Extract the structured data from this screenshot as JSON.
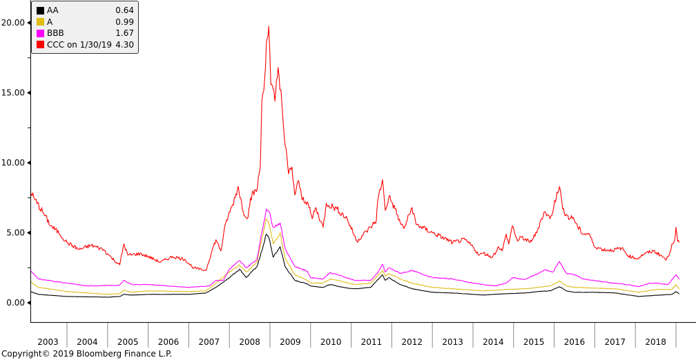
{
  "chart_data": {
    "type": "line",
    "title": "",
    "xlabel": "",
    "ylabel": "",
    "xlim": [
      2003.0,
      2019.35
    ],
    "ylim": [
      -0.5,
      21.5
    ],
    "yticks": [
      {
        "value": 0,
        "label": "0.00"
      },
      {
        "value": 5,
        "label": "5.00"
      },
      {
        "value": 10,
        "label": "10.00"
      },
      {
        "value": 15,
        "label": "15.00"
      },
      {
        "value": 20,
        "label": "20.00"
      }
    ],
    "years": [
      "2003",
      "2004",
      "2005",
      "2006",
      "2007",
      "2008",
      "2009",
      "2010",
      "2011",
      "2012",
      "2013",
      "2014",
      "2015",
      "2016",
      "2017",
      "2018"
    ],
    "grid": false,
    "legend_placement": "top-left",
    "series": [
      {
        "name": "AA",
        "color": "#000000",
        "last": "0.64",
        "x": [
          2003.1,
          2003.3,
          2004.0,
          2005.0,
          2005.3,
          2005.4,
          2005.6,
          2006.0,
          2007.0,
          2007.42,
          2007.67,
          2008.0,
          2008.25,
          2008.42,
          2008.68,
          2008.76,
          2008.91,
          2008.98,
          2009.08,
          2009.25,
          2009.37,
          2009.61,
          2009.92,
          2010.0,
          2010.3,
          2010.48,
          2010.8,
          2011.08,
          2011.48,
          2011.77,
          2011.84,
          2011.93,
          2012.21,
          2012.5,
          2013.0,
          2013.5,
          2014.0,
          2014.26,
          2014.8,
          2015.3,
          2015.6,
          2015.9,
          2016.13,
          2016.3,
          2016.5,
          2017.0,
          2017.5,
          2018.08,
          2018.6,
          2018.9,
          2019.0,
          2019.08
        ],
        "y": [
          0.8,
          0.6,
          0.45,
          0.4,
          0.45,
          0.6,
          0.55,
          0.6,
          0.6,
          0.7,
          1.1,
          1.8,
          2.4,
          1.8,
          2.6,
          3.3,
          4.9,
          4.6,
          3.25,
          4.0,
          2.6,
          1.6,
          1.35,
          1.2,
          1.1,
          1.3,
          1.1,
          1.0,
          1.1,
          2.0,
          1.6,
          1.8,
          1.3,
          1.0,
          0.75,
          0.7,
          0.6,
          0.55,
          0.65,
          0.7,
          0.8,
          0.85,
          1.15,
          0.85,
          0.75,
          0.75,
          0.7,
          0.45,
          0.55,
          0.6,
          0.8,
          0.64
        ]
      },
      {
        "name": "A",
        "color": "#e0bc14",
        "last": "0.99",
        "x": [
          2003.1,
          2003.3,
          2004.0,
          2005.0,
          2005.3,
          2005.4,
          2005.6,
          2006.0,
          2007.0,
          2007.42,
          2007.67,
          2008.0,
          2008.25,
          2008.42,
          2008.68,
          2008.76,
          2008.91,
          2008.98,
          2009.08,
          2009.25,
          2009.37,
          2009.61,
          2009.92,
          2010.0,
          2010.3,
          2010.48,
          2010.8,
          2011.08,
          2011.48,
          2011.77,
          2011.84,
          2011.93,
          2012.21,
          2012.5,
          2013.0,
          2013.5,
          2014.0,
          2014.26,
          2014.8,
          2015.3,
          2015.6,
          2015.9,
          2016.13,
          2016.3,
          2016.5,
          2017.0,
          2017.5,
          2018.08,
          2018.5,
          2018.9,
          2019.0,
          2019.08
        ],
        "y": [
          1.5,
          1.1,
          0.8,
          0.6,
          0.65,
          0.9,
          0.75,
          0.85,
          0.8,
          0.85,
          1.4,
          2.2,
          2.7,
          2.2,
          2.9,
          4.0,
          6.0,
          5.6,
          4.2,
          5.0,
          3.2,
          2.0,
          1.6,
          1.4,
          1.4,
          1.7,
          1.5,
          1.3,
          1.4,
          2.3,
          1.9,
          2.1,
          1.7,
          1.4,
          1.1,
          1.0,
          0.9,
          0.85,
          0.95,
          1.0,
          1.1,
          1.2,
          1.55,
          1.2,
          1.1,
          1.05,
          1.0,
          0.75,
          0.95,
          0.95,
          1.3,
          0.99
        ]
      },
      {
        "name": "BBB",
        "color": "#ff00ff",
        "last": "1.67",
        "x": [
          2003.1,
          2003.3,
          2004.0,
          2004.5,
          2005.3,
          2005.4,
          2005.6,
          2006.0,
          2007.0,
          2007.5,
          2007.67,
          2007.85,
          2008.0,
          2008.25,
          2008.42,
          2008.68,
          2008.76,
          2008.91,
          2008.98,
          2009.08,
          2009.25,
          2009.37,
          2009.61,
          2009.92,
          2010.0,
          2010.3,
          2010.48,
          2010.67,
          2011.08,
          2011.48,
          2011.65,
          2011.77,
          2011.84,
          2011.93,
          2012.21,
          2012.5,
          2013.0,
          2013.5,
          2014.0,
          2014.26,
          2014.54,
          2014.82,
          2014.98,
          2015.27,
          2015.62,
          2015.76,
          2015.97,
          2016.13,
          2016.3,
          2016.52,
          2016.7,
          2017.1,
          2017.44,
          2017.66,
          2017.9,
          2018.08,
          2018.34,
          2018.5,
          2018.8,
          2018.9,
          2019.0,
          2019.08
        ],
        "y": [
          2.3,
          1.7,
          1.4,
          1.2,
          1.25,
          1.6,
          1.3,
          1.3,
          1.1,
          1.2,
          1.6,
          1.6,
          2.4,
          3.0,
          2.5,
          3.1,
          4.4,
          6.7,
          6.5,
          5.4,
          5.7,
          3.9,
          2.6,
          2.25,
          1.8,
          1.7,
          2.15,
          2.0,
          1.6,
          1.6,
          2.1,
          2.75,
          2.2,
          2.5,
          2.1,
          2.3,
          1.8,
          1.7,
          1.4,
          1.3,
          1.2,
          1.4,
          1.8,
          1.65,
          2.1,
          2.35,
          2.2,
          2.95,
          2.1,
          2.0,
          1.7,
          1.55,
          1.4,
          1.35,
          1.25,
          1.15,
          1.4,
          1.4,
          1.3,
          1.65,
          2.0,
          1.67
        ]
      },
      {
        "name": "CCC on 1/30/19",
        "color": "#ff0000",
        "last": "4.30",
        "x": [
          2003.1,
          2003.2,
          2003.4,
          2003.6,
          2003.8,
          2004.0,
          2004.3,
          2004.6,
          2004.9,
          2005.0,
          2005.1,
          2005.3,
          2005.4,
          2005.5,
          2005.8,
          2006.0,
          2006.3,
          2006.6,
          2006.9,
          2007.11,
          2007.42,
          2007.57,
          2007.67,
          2007.79,
          2007.91,
          2008.08,
          2008.22,
          2008.34,
          2008.46,
          2008.52,
          2008.69,
          2008.76,
          2008.8,
          2008.85,
          2008.91,
          2008.97,
          2009.02,
          2009.12,
          2009.2,
          2009.27,
          2009.32,
          2009.37,
          2009.46,
          2009.54,
          2009.61,
          2009.71,
          2009.78,
          2009.92,
          2010.04,
          2010.12,
          2010.31,
          2010.39,
          2010.65,
          2010.9,
          2011.14,
          2011.48,
          2011.62,
          2011.65,
          2011.77,
          2011.84,
          2011.93,
          2012.08,
          2012.21,
          2012.3,
          2012.5,
          2012.6,
          2013.0,
          2013.3,
          2013.5,
          2013.8,
          2014.0,
          2014.15,
          2014.26,
          2014.48,
          2014.63,
          2014.72,
          2014.82,
          2014.88,
          2014.97,
          2015.1,
          2015.2,
          2015.4,
          2015.57,
          2015.67,
          2015.77,
          2015.9,
          2015.99,
          2016.07,
          2016.13,
          2016.21,
          2016.38,
          2016.47,
          2016.58,
          2016.72,
          2016.86,
          2016.98,
          2017.2,
          2017.43,
          2017.66,
          2017.83,
          2018.05,
          2018.22,
          2018.45,
          2018.65,
          2018.76,
          2018.85,
          2018.9,
          2018.97,
          2019.0,
          2019.04,
          2019.08
        ],
        "y": [
          8.0,
          7.4,
          6.5,
          5.5,
          5.0,
          4.3,
          3.8,
          4.1,
          3.8,
          3.5,
          3.2,
          2.7,
          4.2,
          3.4,
          3.5,
          3.3,
          2.9,
          3.3,
          3.1,
          2.5,
          2.3,
          3.7,
          4.5,
          3.7,
          5.7,
          7.0,
          8.3,
          6.5,
          6.1,
          7.5,
          8.2,
          9.7,
          14.4,
          15.2,
          18.5,
          19.75,
          15.6,
          14.4,
          16.8,
          15.2,
          13.1,
          11.3,
          9.2,
          9.7,
          7.7,
          8.7,
          7.5,
          7.2,
          6.0,
          6.8,
          5.4,
          7.1,
          6.7,
          6.0,
          4.4,
          5.4,
          5.9,
          7.2,
          8.8,
          6.6,
          7.6,
          6.7,
          5.7,
          5.3,
          6.8,
          5.6,
          5.0,
          4.6,
          4.3,
          4.5,
          4.0,
          3.4,
          3.55,
          3.25,
          4.0,
          3.7,
          4.9,
          4.2,
          5.5,
          4.4,
          4.7,
          4.3,
          5.0,
          5.9,
          6.5,
          6.0,
          6.85,
          7.9,
          8.3,
          6.7,
          6.0,
          6.1,
          5.4,
          4.9,
          4.95,
          4.05,
          3.8,
          3.75,
          3.9,
          3.35,
          3.15,
          3.5,
          3.7,
          3.35,
          3.05,
          3.6,
          4.2,
          4.5,
          5.4,
          4.4,
          4.3
        ]
      }
    ]
  },
  "copyright": "Copyright© 2019 Bloomberg Finance L.P."
}
